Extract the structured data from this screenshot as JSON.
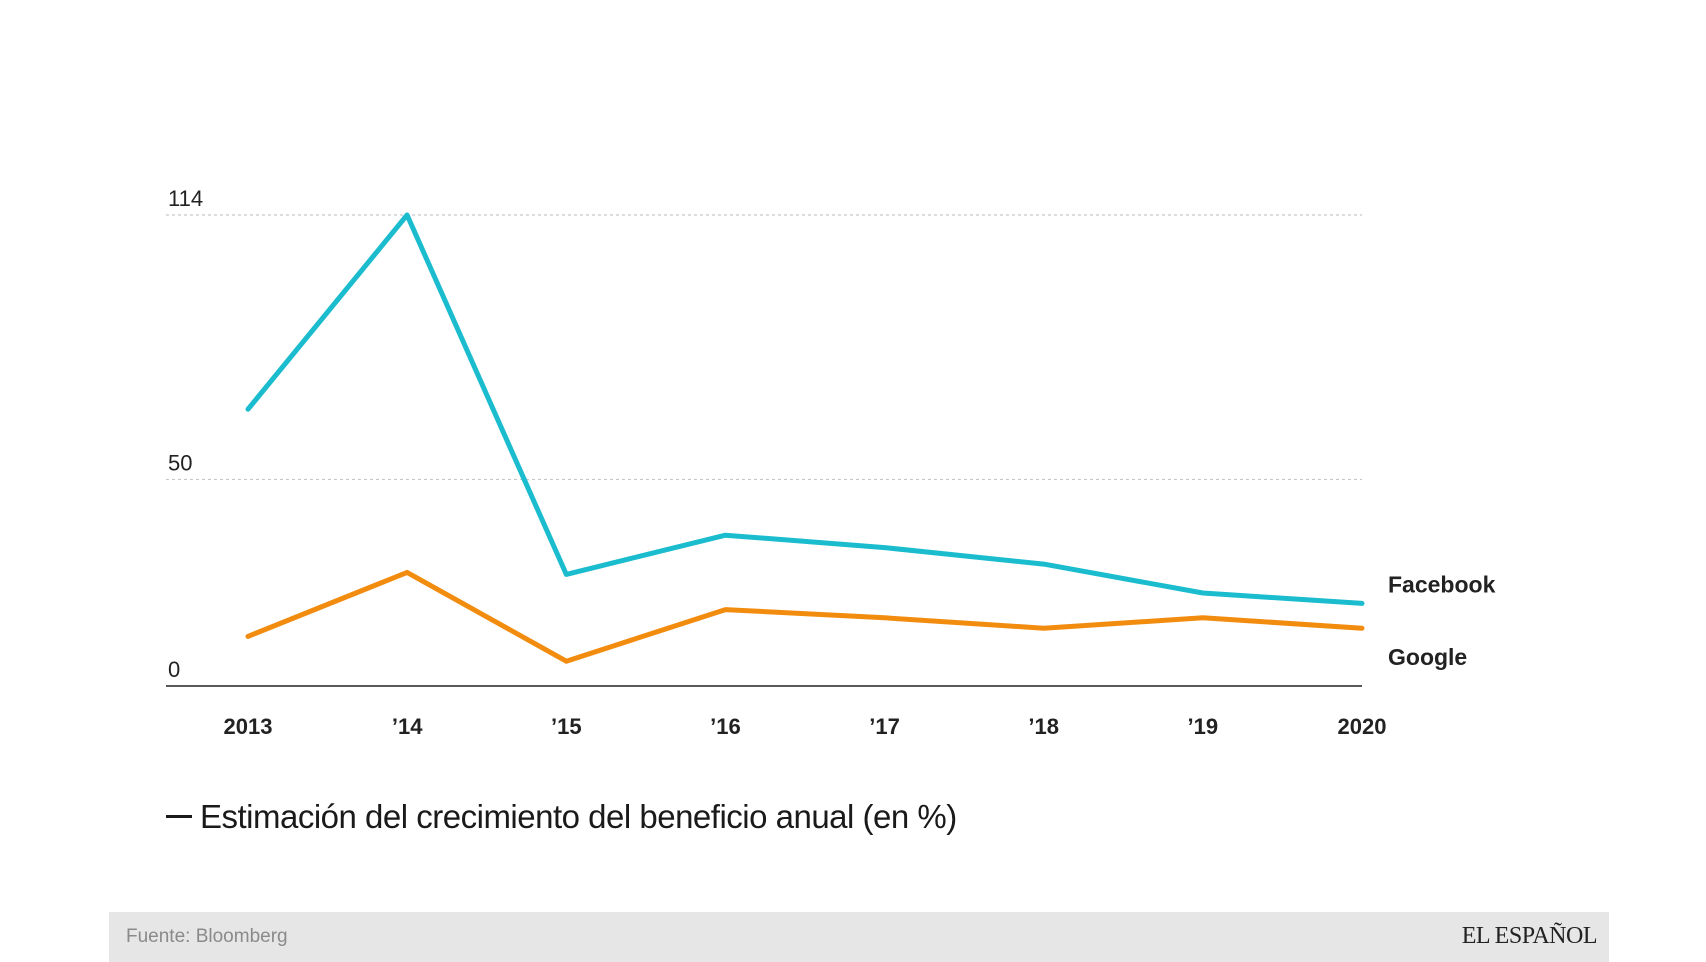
{
  "chart_data": {
    "type": "line",
    "title": "Estimación del crecimiento del beneficio anual (en %)",
    "categories": [
      "2013",
      "’14",
      "’15",
      "’16",
      "’17",
      "’18",
      "’19",
      "2020"
    ],
    "yticks": [
      0,
      50,
      114
    ],
    "ylim": [
      0,
      114
    ],
    "grid": true,
    "series": [
      {
        "name": "Facebook",
        "color": "#1abcce",
        "values": [
          67,
          114,
          27,
          36.5,
          33.5,
          29.5,
          22.5,
          20
        ]
      },
      {
        "name": "Google",
        "color": "#f28c0f",
        "values": [
          12,
          27.5,
          6,
          18.5,
          16.5,
          14,
          16.5,
          14
        ]
      }
    ]
  },
  "subtitle": "Estimación del crecimiento del beneficio anual (en %)",
  "footer": {
    "source": "Fuente: Bloomberg",
    "brand": "EL ESPAÑOL"
  },
  "colors": {
    "axis": "#222222",
    "grid": "#c8c8c8",
    "footer_bg": "#e6e6e6"
  }
}
